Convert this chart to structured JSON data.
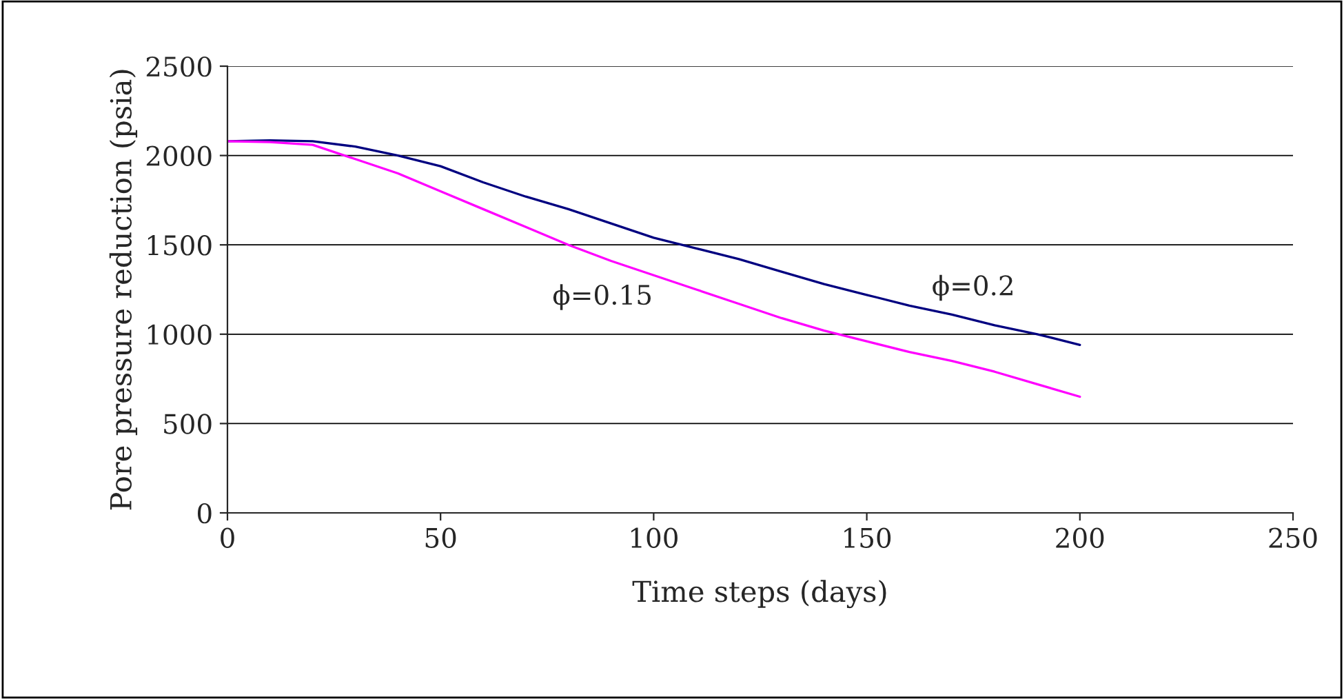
{
  "chart_data": {
    "type": "line",
    "xlabel": "Time steps (days)",
    "ylabel": "Pore pressure reduction (psia)",
    "xlim": [
      0,
      250
    ],
    "xticks": [
      0,
      50,
      100,
      150,
      200,
      250
    ],
    "ylim": [
      0,
      2500
    ],
    "yticks": [
      0,
      500,
      1000,
      1500,
      2000,
      2500
    ],
    "grid": "y",
    "legend": false,
    "series": [
      {
        "color": "#000080",
        "x": [
          0,
          10,
          20,
          30,
          40,
          50,
          60,
          70,
          80,
          90,
          100,
          110,
          120,
          130,
          140,
          150,
          160,
          170,
          180,
          190,
          200
        ],
        "values": [
          2080,
          2085,
          2080,
          2050,
          2000,
          1940,
          1850,
          1770,
          1700,
          1620,
          1540,
          1480,
          1420,
          1350,
          1280,
          1220,
          1160,
          1110,
          1050,
          1000,
          940
        ]
      },
      {
        "color": "#ff00ff",
        "x": [
          0,
          10,
          20,
          30,
          40,
          50,
          60,
          70,
          80,
          90,
          100,
          110,
          120,
          130,
          140,
          150,
          160,
          170,
          180,
          190,
          200
        ],
        "values": [
          2080,
          2075,
          2060,
          1980,
          1900,
          1800,
          1700,
          1600,
          1500,
          1410,
          1330,
          1250,
          1170,
          1090,
          1020,
          960,
          900,
          850,
          790,
          720,
          650
        ]
      }
    ],
    "annotations": [
      {
        "text": "ϕ=0.2",
        "x": 175,
        "y": 1080
      },
      {
        "text": "ϕ=0.15",
        "x": 88,
        "y": 1430
      }
    ]
  }
}
